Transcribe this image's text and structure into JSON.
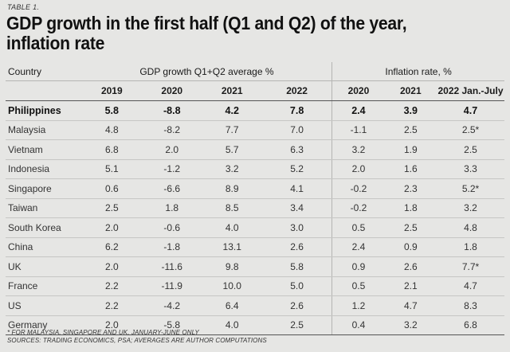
{
  "tag": "TABLE 1.",
  "title_line1": "GDP growth in the first half (Q1 and Q2) of the year,",
  "title_line2": "inflation rate",
  "headers": {
    "country": "Country",
    "gdp_group": "GDP growth Q1+Q2 average %",
    "inflation_group": "Inflation rate, %",
    "columns": [
      "2019",
      "2020",
      "2021",
      "2022",
      "2020",
      "2021",
      "2022 Jan.-July"
    ]
  },
  "rows": [
    {
      "country": "Philippines",
      "bold": true,
      "values": [
        "5.8",
        "-8.8",
        "4.2",
        "7.8",
        "2.4",
        "3.9",
        "4.7"
      ]
    },
    {
      "country": "Malaysia",
      "values": [
        "4.8",
        "-8.2",
        "7.7",
        "7.0",
        "-1.1",
        "2.5",
        "2.5*"
      ]
    },
    {
      "country": "Vietnam",
      "values": [
        "6.8",
        "2.0",
        "5.7",
        "6.3",
        "3.2",
        "1.9",
        "2.5"
      ]
    },
    {
      "country": "Indonesia",
      "values": [
        "5.1",
        "-1.2",
        "3.2",
        "5.2",
        "2.0",
        "1.6",
        "3.3"
      ]
    },
    {
      "country": "Singapore",
      "values": [
        "0.6",
        "-6.6",
        "8.9",
        "4.1",
        "-0.2",
        "2.3",
        "5.2*"
      ]
    },
    {
      "country": "Taiwan",
      "values": [
        "2.5",
        "1.8",
        "8.5",
        "3.4",
        "-0.2",
        "1.8",
        "3.2"
      ]
    },
    {
      "country": "South Korea",
      "values": [
        "2.0",
        "-0.6",
        "4.0",
        "3.0",
        "0.5",
        "2.5",
        "4.8"
      ]
    },
    {
      "country": "China",
      "values": [
        "6.2",
        "-1.8",
        "13.1",
        "2.6",
        "2.4",
        "0.9",
        "1.8"
      ]
    },
    {
      "country": "UK",
      "values": [
        "2.0",
        "-11.6",
        "9.8",
        "5.8",
        "0.9",
        "2.6",
        "7.7*"
      ]
    },
    {
      "country": "France",
      "values": [
        "2.2",
        "-11.9",
        "10.0",
        "5.0",
        "0.5",
        "2.1",
        "4.7"
      ]
    },
    {
      "country": "US",
      "values": [
        "2.2",
        "-4.2",
        "6.4",
        "2.6",
        "1.2",
        "4.7",
        "8.3"
      ]
    },
    {
      "country": "Germany",
      "values": [
        "2.0",
        "-5.8",
        "4.0",
        "2.5",
        "0.4",
        "3.2",
        "6.8"
      ]
    }
  ],
  "footnote1": "* FOR MALAYSIA, SINGAPORE AND UK, JANUARY-JUNE ONLY",
  "footnote2": "SOURCES: TRADING ECONOMICS, PSA; AVERAGES ARE AUTHOR COMPUTATIONS"
}
